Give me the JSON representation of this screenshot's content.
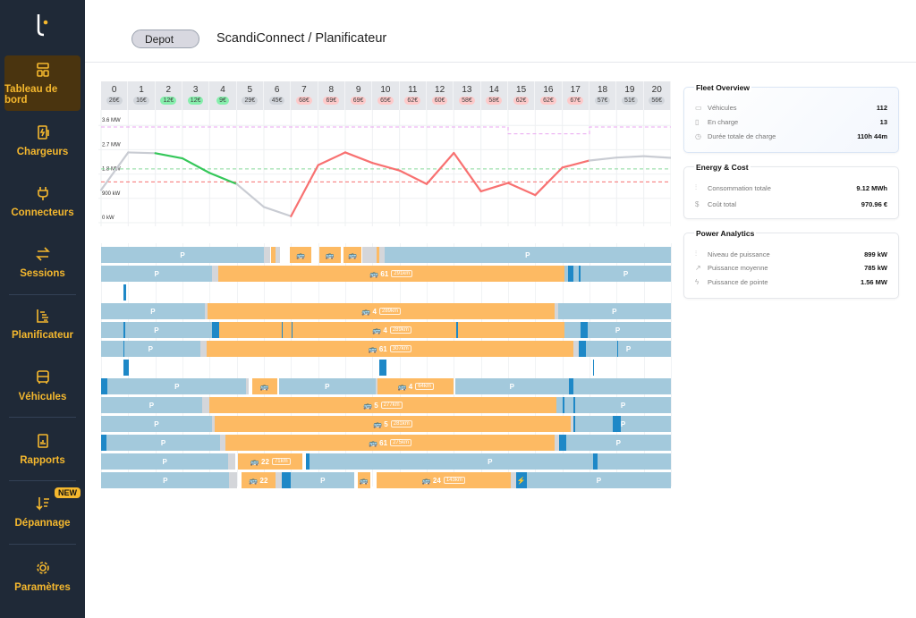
{
  "sidebar": {
    "items": [
      {
        "label": "Tableau de bord",
        "icon": "dashboard-icon",
        "active": true
      },
      {
        "label": "Chargeurs",
        "icon": "charger-icon"
      },
      {
        "label": "Connecteurs",
        "icon": "plug-icon"
      },
      {
        "label": "Sessions",
        "icon": "swap-arrows-icon"
      },
      {
        "label": "Planificateur",
        "icon": "planner-icon"
      },
      {
        "label": "Véhicules",
        "icon": "bus-icon"
      },
      {
        "label": "Rapports",
        "icon": "report-icon"
      },
      {
        "label": "Dépannage",
        "icon": "troubleshoot-icon",
        "badge": "NEW"
      },
      {
        "label": "Paramètres",
        "icon": "gear-icon"
      }
    ],
    "accent": "#f5b82e",
    "active_bg": "#4a340f"
  },
  "header": {
    "depot": "Depot",
    "breadcrumb": "ScandiConnect  /  Planificateur"
  },
  "hours": [
    {
      "h": "0",
      "p": "26€",
      "c": "gray"
    },
    {
      "h": "1",
      "p": "16€",
      "c": "gray"
    },
    {
      "h": "2",
      "p": "12€",
      "c": "green"
    },
    {
      "h": "3",
      "p": "12€",
      "c": "green"
    },
    {
      "h": "4",
      "p": "9€",
      "c": "green"
    },
    {
      "h": "5",
      "p": "29€",
      "c": "gray"
    },
    {
      "h": "6",
      "p": "45€",
      "c": "gray"
    },
    {
      "h": "7",
      "p": "68€",
      "c": "red"
    },
    {
      "h": "8",
      "p": "69€",
      "c": "red"
    },
    {
      "h": "9",
      "p": "69€",
      "c": "red"
    },
    {
      "h": "10",
      "p": "65€",
      "c": "red"
    },
    {
      "h": "11",
      "p": "62€",
      "c": "red"
    },
    {
      "h": "12",
      "p": "60€",
      "c": "red"
    },
    {
      "h": "13",
      "p": "58€",
      "c": "red"
    },
    {
      "h": "14",
      "p": "58€",
      "c": "red"
    },
    {
      "h": "15",
      "p": "62€",
      "c": "red"
    },
    {
      "h": "16",
      "p": "62€",
      "c": "red"
    },
    {
      "h": "17",
      "p": "67€",
      "c": "red"
    },
    {
      "h": "18",
      "p": "57€",
      "c": "gray"
    },
    {
      "h": "19",
      "p": "51€",
      "c": "gray"
    },
    {
      "h": "20",
      "p": "56€",
      "c": "gray"
    }
  ],
  "chart_data": {
    "type": "line",
    "ylim": [
      0,
      3.6
    ],
    "ytick_labels": [
      "3.6 MW",
      "2.7 MW",
      "1.8 MW",
      "900 kW",
      "0 kW"
    ],
    "yticks": [
      3.6,
      2.7,
      1.8,
      0.9,
      0
    ],
    "x": [
      0,
      1,
      2,
      3,
      4,
      5,
      6,
      7,
      8,
      9,
      10,
      11,
      12,
      13,
      14,
      15,
      16,
      17,
      18,
      19,
      20,
      21
    ],
    "power_mw": [
      1.21,
      2.6,
      2.57,
      2.38,
      1.84,
      1.43,
      0.58,
      0.24,
      2.13,
      2.6,
      2.21,
      1.93,
      1.43,
      2.58,
      1.16,
      1.47,
      1.02,
      2.04,
      2.3,
      2.41,
      2.46,
      2.4
    ],
    "limit_mw": {
      "default": 3.54,
      "reduced": 3.29,
      "reduced_hours": [
        15,
        18
      ]
    },
    "green_threshold_mw": 1.99,
    "red_threshold_mw": 1.51,
    "colors": {
      "gray": "#c9ccd3",
      "green": "#34c759",
      "red": "#f87171",
      "limit": "#e9a6f0"
    }
  },
  "gantt": {
    "colors": {
      "p": "#a3c9dc",
      "g": "#d4d6da",
      "t": "#fdba63",
      "c": "#1e88c7"
    },
    "rows": [
      [
        [
          0,
          6,
          "p",
          "P"
        ],
        [
          6,
          6.22,
          "g"
        ],
        [
          6.27,
          6.43,
          "t"
        ],
        [
          6.43,
          6.6,
          "g"
        ],
        [
          6.97,
          7.76,
          "t",
          "🚌"
        ],
        [
          8.03,
          8.84,
          "t",
          "🚌"
        ],
        [
          8.94,
          9.61,
          "t",
          "🚌"
        ],
        [
          9.61,
          10.15,
          "g"
        ],
        [
          10.15,
          10.26,
          "t"
        ],
        [
          10.26,
          10.44,
          "g"
        ],
        [
          10.44,
          21,
          "p",
          "P"
        ]
      ],
      [
        [
          0,
          4.1,
          "p",
          "P"
        ],
        [
          4.1,
          4.31,
          "g"
        ],
        [
          4.31,
          17.07,
          "t",
          "🚌 61",
          "291km"
        ],
        [
          17.07,
          17.67,
          "p"
        ],
        [
          17.2,
          17.4,
          "c"
        ],
        [
          17.6,
          17.67,
          "c"
        ],
        [
          17.67,
          21,
          "p",
          "P"
        ]
      ],
      [
        [
          0.84,
          0.92,
          "c"
        ]
      ],
      [
        [
          0,
          3.82,
          "p",
          "P"
        ],
        [
          3.82,
          3.92,
          "g"
        ],
        [
          3.92,
          16.73,
          "t",
          "🚌 4",
          "289km"
        ],
        [
          16.73,
          16.83,
          "g"
        ],
        [
          16.83,
          21,
          "p",
          "P"
        ]
      ],
      [
        [
          0,
          4.08,
          "p",
          "P"
        ],
        [
          0.84,
          0.88,
          "c"
        ],
        [
          4.08,
          4.35,
          "c"
        ],
        [
          4.35,
          17.08,
          "t",
          "🚌 4",
          "289km"
        ],
        [
          6.65,
          6.7,
          "c"
        ],
        [
          7.01,
          7.06,
          "c"
        ],
        [
          13.1,
          13.15,
          "c"
        ],
        [
          17.08,
          21,
          "p",
          "P"
        ],
        [
          17.67,
          17.94,
          "c"
        ]
      ],
      [
        [
          0,
          3.65,
          "p",
          "P"
        ],
        [
          0.84,
          0.86,
          "c"
        ],
        [
          3.65,
          3.88,
          "g"
        ],
        [
          3.88,
          17.4,
          "t",
          "🚌 61",
          "307km"
        ],
        [
          17.4,
          17.6,
          "g"
        ],
        [
          17.6,
          17.87,
          "c"
        ],
        [
          17.87,
          21,
          "p",
          "P"
        ],
        [
          19.02,
          19.06,
          "c"
        ]
      ],
      [
        [
          0.84,
          1.02,
          "c"
        ],
        [
          10.24,
          10.51,
          "c"
        ],
        [
          18.14,
          18.18,
          "c"
        ]
      ],
      [
        [
          0,
          0.24,
          "c"
        ],
        [
          0.24,
          5.35,
          "p",
          "P"
        ],
        [
          5.35,
          5.45,
          "g"
        ],
        [
          5.56,
          6.49,
          "t",
          "🚌"
        ],
        [
          6.56,
          10.11,
          "p",
          "P"
        ],
        [
          10.11,
          10.2,
          "g"
        ],
        [
          10.2,
          12.99,
          "t",
          "🚌 4",
          "64km"
        ],
        [
          13.05,
          17.23,
          "p",
          "P"
        ],
        [
          17.23,
          17.4,
          "c"
        ],
        [
          17.4,
          21,
          "p"
        ]
      ],
      [
        [
          0,
          3.72,
          "p",
          "P"
        ],
        [
          3.72,
          3.99,
          "g"
        ],
        [
          3.99,
          16.77,
          "t",
          "🚌 5",
          "277km"
        ],
        [
          16.77,
          17.48,
          "p"
        ],
        [
          17.0,
          17.08,
          "c"
        ],
        [
          17.4,
          17.48,
          "c"
        ],
        [
          17.48,
          21,
          "p",
          "P"
        ]
      ],
      [
        [
          0,
          4.08,
          "p",
          "P"
        ],
        [
          4.08,
          4.19,
          "g"
        ],
        [
          4.19,
          17.3,
          "t",
          "🚌 5",
          "281km"
        ],
        [
          17.3,
          17.4,
          "g"
        ],
        [
          17.4,
          17.48,
          "c"
        ],
        [
          17.48,
          21,
          "p",
          "P"
        ],
        [
          18.87,
          19.14,
          "c"
        ]
      ],
      [
        [
          0,
          0.21,
          "c"
        ],
        [
          0.21,
          4.38,
          "p",
          "P"
        ],
        [
          4.38,
          4.59,
          "g"
        ],
        [
          4.59,
          16.71,
          "t",
          "🚌 61",
          "275km"
        ],
        [
          16.71,
          16.89,
          "g"
        ],
        [
          16.89,
          17.13,
          "c"
        ],
        [
          17.13,
          21,
          "p",
          "P"
        ]
      ],
      [
        [
          0,
          4.69,
          "p",
          "P"
        ],
        [
          4.69,
          4.93,
          "g"
        ],
        [
          5.05,
          7.43,
          "t",
          "🚌 22",
          "71km"
        ],
        [
          7.56,
          7.67,
          "c"
        ],
        [
          7.67,
          21,
          "p",
          "P"
        ],
        [
          18.14,
          18.3,
          "c"
        ]
      ],
      [
        [
          0,
          4.73,
          "p",
          "P"
        ],
        [
          4.73,
          5.02,
          "g"
        ],
        [
          5.17,
          6.43,
          "t",
          "🚌 22"
        ],
        [
          6.43,
          6.65,
          "g"
        ],
        [
          6.65,
          7.0,
          "c"
        ],
        [
          7.0,
          9.34,
          "p",
          "P"
        ],
        [
          9.45,
          9.91,
          "t",
          "🚌"
        ],
        [
          10.15,
          15.09,
          "t",
          "🚌 24",
          "143km"
        ],
        [
          15.09,
          15.29,
          "g"
        ],
        [
          15.29,
          15.69,
          "c",
          "⚡"
        ],
        [
          15.69,
          21,
          "p",
          "P"
        ]
      ]
    ]
  },
  "fleet": {
    "title": "Fleet Overview",
    "rows": [
      {
        "label": "Véhicules",
        "value": "112",
        "icon": "bus-icon"
      },
      {
        "label": "En charge",
        "value": "13",
        "icon": "battery-charging-icon"
      },
      {
        "label": "Durée totale de charge",
        "value": "110h 44m",
        "icon": "clock-icon"
      }
    ]
  },
  "energy": {
    "title": "Energy & Cost",
    "rows": [
      {
        "label": "Consommation totale",
        "value": "9.12 MWh",
        "icon": "energy-icon"
      },
      {
        "label": "Coût total",
        "value": "970.96  €",
        "icon": "coin-icon"
      }
    ]
  },
  "power": {
    "title": "Power Analytics",
    "rows": [
      {
        "label": "Niveau de puissance",
        "value": "899 kW",
        "icon": "power-level-icon"
      },
      {
        "label": "Puissance moyenne",
        "value": "785 kW",
        "icon": "trend-icon"
      },
      {
        "label": "Puissance de pointe",
        "value": "1.56 MW",
        "icon": "peak-icon"
      }
    ]
  }
}
